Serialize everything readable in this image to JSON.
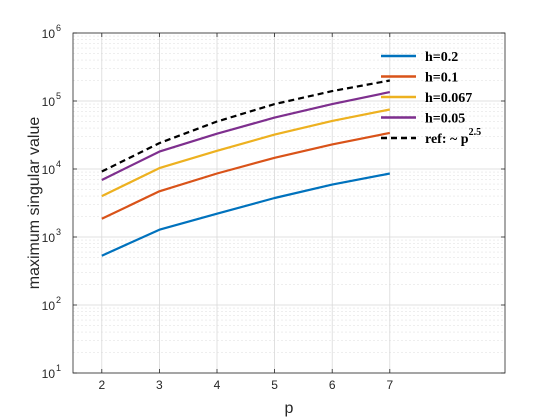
{
  "chart_data": {
    "type": "line",
    "xlabel": "p",
    "ylabel": "maximum singular value",
    "x": [
      2,
      3,
      4,
      5,
      6,
      7
    ],
    "xlim": [
      1.5,
      9
    ],
    "ylim": [
      10,
      1000000
    ],
    "yscale": "log",
    "xticks": [
      "2",
      "3",
      "4",
      "5",
      "6",
      "7"
    ],
    "yticks": [
      {
        "base": "10",
        "exp": "1",
        "value": 10
      },
      {
        "base": "10",
        "exp": "2",
        "value": 100
      },
      {
        "base": "10",
        "exp": "3",
        "value": 1000
      },
      {
        "base": "10",
        "exp": "4",
        "value": 10000
      },
      {
        "base": "10",
        "exp": "5",
        "value": 100000
      },
      {
        "base": "10",
        "exp": "6",
        "value": 1000000
      }
    ],
    "grid": true,
    "legend_position": "top-right",
    "series": [
      {
        "name": "h=0.2",
        "color": "#0072BD",
        "dash": false,
        "values": [
          530,
          1280,
          2200,
          3750,
          5900,
          8600
        ]
      },
      {
        "name": "h=0.1",
        "color": "#D95319",
        "dash": false,
        "values": [
          1850,
          4700,
          8600,
          14600,
          23000,
          34000
        ]
      },
      {
        "name": "h=0.067",
        "color": "#EDB120",
        "dash": false,
        "values": [
          4000,
          10300,
          18500,
          32000,
          51000,
          75000
        ]
      },
      {
        "name": "h=0.05",
        "color": "#7E2F8E",
        "dash": false,
        "values": [
          6900,
          18000,
          33000,
          57000,
          90000,
          135000
        ]
      },
      {
        "name": "ref: ~ p",
        "name_sup": "2.5",
        "color": "#000000",
        "dash": true,
        "values": [
          9200,
          24000,
          50000,
          90000,
          140000,
          200000
        ]
      }
    ]
  }
}
